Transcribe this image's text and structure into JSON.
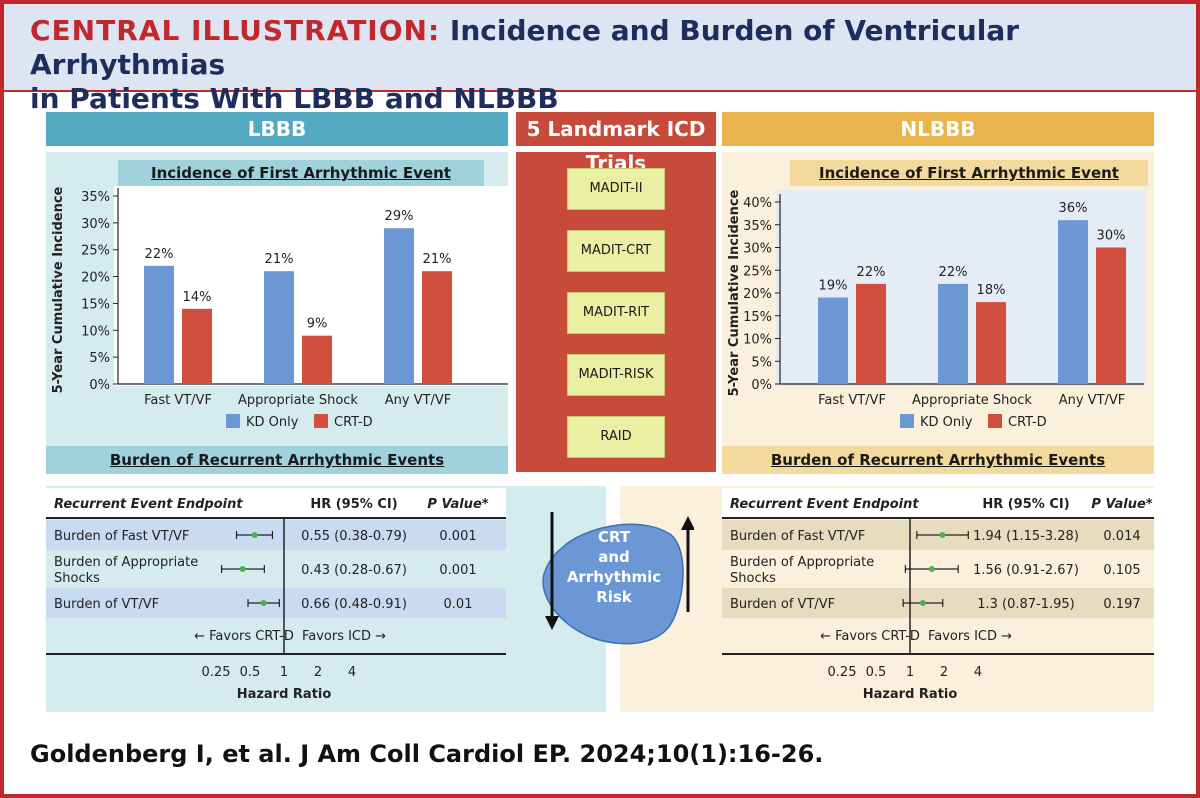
{
  "header": {
    "title_keyword": "CENTRAL ILLUSTRATION:",
    "title_line1": "Incidence and Burden of Ventricular Arrhythmias",
    "title_line2": "in Patients With LBBB and NLBBB"
  },
  "lbbb": {
    "header": "LBBB",
    "incidence_title": "Incidence of First Arrhythmic Event",
    "burden_title": "Burden of Recurrent Arrhythmic Events",
    "forest": {
      "col_endpoint": "Recurrent Event Endpoint",
      "col_hr": "HR (95% CI)",
      "col_p": "P Value*",
      "rows": [
        {
          "label": "Burden of Fast VT/VF",
          "hr": "0.55 (0.38-0.79)",
          "p": "0.001",
          "est": 0.55,
          "lo": 0.38,
          "hi": 0.79
        },
        {
          "label": "Burden of Appropriate Shocks",
          "hr": "0.43 (0.28-0.67)",
          "p": "0.001",
          "est": 0.43,
          "lo": 0.28,
          "hi": 0.67
        },
        {
          "label": "Burden of VT/VF",
          "hr": "0.66 (0.48-0.91)",
          "p": "0.01",
          "est": 0.66,
          "lo": 0.48,
          "hi": 0.91
        }
      ],
      "favors_left": "Favors CRT-D",
      "favors_right": "Favors ICD",
      "ticks": [
        "0.25",
        "0.5",
        "1",
        "2",
        "4"
      ],
      "axis_label": "Hazard Ratio"
    }
  },
  "nlbbb": {
    "header": "NLBBB",
    "incidence_title": "Incidence of First Arrhythmic Event",
    "burden_title": "Burden of Recurrent Arrhythmic Events",
    "forest": {
      "col_endpoint": "Recurrent Event Endpoint",
      "col_hr": "HR (95% CI)",
      "col_p": "P Value*",
      "rows": [
        {
          "label": "Burden of Fast VT/VF",
          "hr": "1.94 (1.15-3.28)",
          "p": "0.014",
          "est": 1.94,
          "lo": 1.15,
          "hi": 3.28
        },
        {
          "label": "Burden of Appropriate Shocks",
          "hr": "1.56 (0.91-2.67)",
          "p": "0.105",
          "est": 1.56,
          "lo": 0.91,
          "hi": 2.67
        },
        {
          "label": "Burden of VT/VF",
          "hr": "1.3 (0.87-1.95)",
          "p": "0.197",
          "est": 1.3,
          "lo": 0.87,
          "hi": 1.95
        }
      ],
      "favors_left": "Favors CRT-D",
      "favors_right": "Favors ICD",
      "ticks": [
        "0.25",
        "0.5",
        "1",
        "2",
        "4"
      ],
      "axis_label": "Hazard Ratio"
    }
  },
  "trials": {
    "header": "5 Landmark ICD Trials",
    "items": [
      "MADIT-II",
      "MADIT-CRT",
      "MADIT-RIT",
      "MADIT-RISK",
      "RAID"
    ],
    "center_label": [
      "CRT",
      "and",
      "Arrhythmic",
      "Risk"
    ]
  },
  "citation": "Goldenberg I, et al. J Am Coll Cardiol EP. 2024;10(1):16-26.",
  "colors": {
    "kd_only": "#6b97d4",
    "crt_d": "#d14f3f",
    "lbbb": "#52a9c1",
    "nlbbb": "#e9b44c",
    "trials": "#c84a3a",
    "brand_red": "#c0282d"
  },
  "chart_data": [
    {
      "type": "bar",
      "title": "Incidence of First Arrhythmic Event",
      "ylabel": "5-Year Cumulative Incidence",
      "categories": [
        "Fast VT/VF",
        "Appropriate Shock",
        "Any VT/VF"
      ],
      "series": [
        {
          "name": "KD Only",
          "values": [
            22,
            21,
            29
          ]
        },
        {
          "name": "CRT-D",
          "values": [
            14,
            9,
            21
          ]
        }
      ],
      "ylim": [
        0,
        35
      ],
      "yticks": [
        0,
        5,
        10,
        15,
        20,
        25,
        30,
        35
      ],
      "legend": "bottom"
    },
    {
      "type": "bar",
      "title": "Incidence of First Arrhythmic Event",
      "ylabel": "5-Year Cumulative Incidence",
      "categories": [
        "Fast VT/VF",
        "Appropriate Shock",
        "Any VT/VF"
      ],
      "series": [
        {
          "name": "KD Only",
          "values": [
            19,
            22,
            36
          ]
        },
        {
          "name": "CRT-D",
          "values": [
            22,
            18,
            30
          ]
        }
      ],
      "ylim": [
        0,
        40
      ],
      "yticks": [
        0,
        5,
        10,
        15,
        20,
        25,
        30,
        35,
        40
      ],
      "legend": "bottom"
    }
  ]
}
